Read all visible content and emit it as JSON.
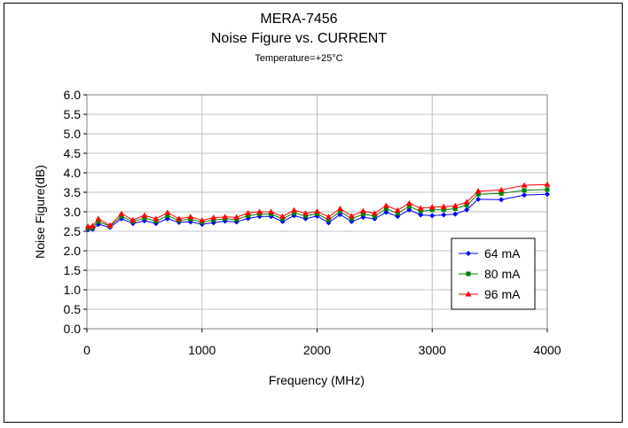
{
  "chart_data": {
    "type": "line",
    "title": "MERA-7456",
    "subtitle": "Noise Figure vs. CURRENT",
    "note": "Temperature=+25°C",
    "xlabel": "Frequency (MHz)",
    "ylabel": "Noise Figure(dB)",
    "xlim": [
      0,
      4000
    ],
    "ylim": [
      0.0,
      6.0
    ],
    "xticks": [
      0,
      1000,
      2000,
      3000,
      4000
    ],
    "yticks": [
      "0.0",
      "0.5",
      "1.0",
      "1.5",
      "2.0",
      "2.5",
      "3.0",
      "3.5",
      "4.0",
      "4.5",
      "5.0",
      "5.5",
      "6.0"
    ],
    "grid": true,
    "legend_position": "bottom-right",
    "x": [
      10,
      50,
      100,
      200,
      300,
      400,
      500,
      600,
      700,
      800,
      900,
      1000,
      1100,
      1200,
      1300,
      1400,
      1500,
      1600,
      1700,
      1800,
      1900,
      2000,
      2100,
      2200,
      2300,
      2400,
      2500,
      2600,
      2700,
      2800,
      2900,
      3000,
      3100,
      3200,
      3300,
      3400,
      3600,
      3800,
      4000
    ],
    "series": [
      {
        "name": "64 mA",
        "color": "#0000ff",
        "marker": "diamond",
        "values": [
          2.54,
          2.55,
          2.68,
          2.6,
          2.82,
          2.7,
          2.77,
          2.7,
          2.82,
          2.73,
          2.74,
          2.68,
          2.72,
          2.76,
          2.74,
          2.83,
          2.88,
          2.88,
          2.75,
          2.9,
          2.82,
          2.89,
          2.72,
          2.93,
          2.75,
          2.86,
          2.82,
          2.99,
          2.88,
          3.05,
          2.92,
          2.9,
          2.92,
          2.94,
          3.05,
          3.32,
          3.31,
          3.43,
          3.45
        ]
      },
      {
        "name": "80 mA",
        "color": "#008000",
        "marker": "square",
        "values": [
          2.58,
          2.6,
          2.75,
          2.63,
          2.88,
          2.75,
          2.84,
          2.76,
          2.9,
          2.78,
          2.81,
          2.73,
          2.79,
          2.82,
          2.8,
          2.9,
          2.94,
          2.94,
          2.82,
          2.97,
          2.89,
          2.95,
          2.79,
          3.01,
          2.82,
          2.94,
          2.89,
          3.08,
          2.96,
          3.14,
          3.01,
          3.05,
          3.05,
          3.08,
          3.17,
          3.45,
          3.47,
          3.55,
          3.57
        ]
      },
      {
        "name": "96 mA",
        "color": "#ff0000",
        "marker": "triangle",
        "values": [
          2.62,
          2.64,
          2.82,
          2.65,
          2.95,
          2.79,
          2.91,
          2.82,
          2.98,
          2.82,
          2.87,
          2.78,
          2.85,
          2.87,
          2.86,
          2.97,
          3.0,
          3.0,
          2.88,
          3.04,
          2.96,
          3.01,
          2.87,
          3.08,
          2.89,
          3.02,
          2.96,
          3.16,
          3.04,
          3.22,
          3.09,
          3.12,
          3.13,
          3.15,
          3.25,
          3.53,
          3.56,
          3.68,
          3.7
        ]
      }
    ]
  }
}
